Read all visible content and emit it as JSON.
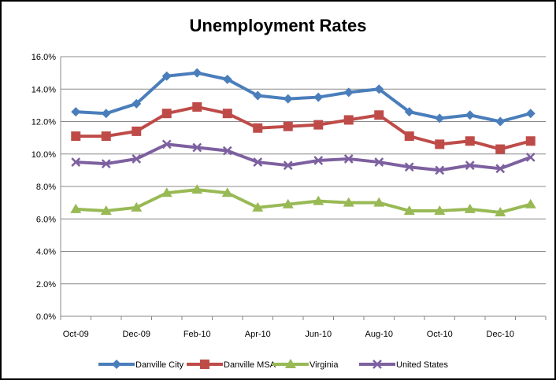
{
  "chart_data": {
    "type": "line",
    "title": "Unemployment Rates",
    "xlabel": "",
    "ylabel": "",
    "ylim": [
      0,
      16
    ],
    "yticks": [
      "0.0%",
      "2.0%",
      "4.0%",
      "6.0%",
      "8.0%",
      "10.0%",
      "12.0%",
      "14.0%",
      "16.0%"
    ],
    "categories": [
      "Oct-09",
      "Nov-09",
      "Dec-09",
      "Jan-10",
      "Feb-10",
      "Mar-10",
      "Apr-10",
      "May-10",
      "Jun-10",
      "Jul-10",
      "Aug-10",
      "Sep-10",
      "Oct-10",
      "Nov-10",
      "Dec-10",
      "Jan-11"
    ],
    "xtick_labels": [
      "Oct-09",
      "Dec-09",
      "Feb-10",
      "Apr-10",
      "Jun-10",
      "Aug-10",
      "Oct-10",
      "Dec-10"
    ],
    "grid": true,
    "legend_position": "bottom",
    "series": [
      {
        "name": "Danville City",
        "color": "#4a7ebb",
        "marker": "diamond",
        "values": [
          12.6,
          12.5,
          13.1,
          14.8,
          15.0,
          14.6,
          13.6,
          13.4,
          13.5,
          13.8,
          14.0,
          12.6,
          12.2,
          12.4,
          12.0,
          12.5
        ]
      },
      {
        "name": "Danville MSA",
        "color": "#be4b48",
        "marker": "square",
        "values": [
          11.1,
          11.1,
          11.4,
          12.5,
          12.9,
          12.5,
          11.6,
          11.7,
          11.8,
          12.1,
          12.4,
          11.1,
          10.6,
          10.8,
          10.3,
          10.8
        ]
      },
      {
        "name": "Virginia",
        "color": "#98b954",
        "marker": "triangle",
        "values": [
          6.6,
          6.5,
          6.7,
          7.6,
          7.8,
          7.6,
          6.7,
          6.9,
          7.1,
          7.0,
          7.0,
          6.5,
          6.5,
          6.6,
          6.4,
          6.9
        ]
      },
      {
        "name": "United States",
        "color": "#7d60a0",
        "marker": "x",
        "values": [
          9.5,
          9.4,
          9.7,
          10.6,
          10.4,
          10.2,
          9.5,
          9.3,
          9.6,
          9.7,
          9.5,
          9.2,
          9.0,
          9.3,
          9.1,
          9.8
        ]
      }
    ]
  }
}
